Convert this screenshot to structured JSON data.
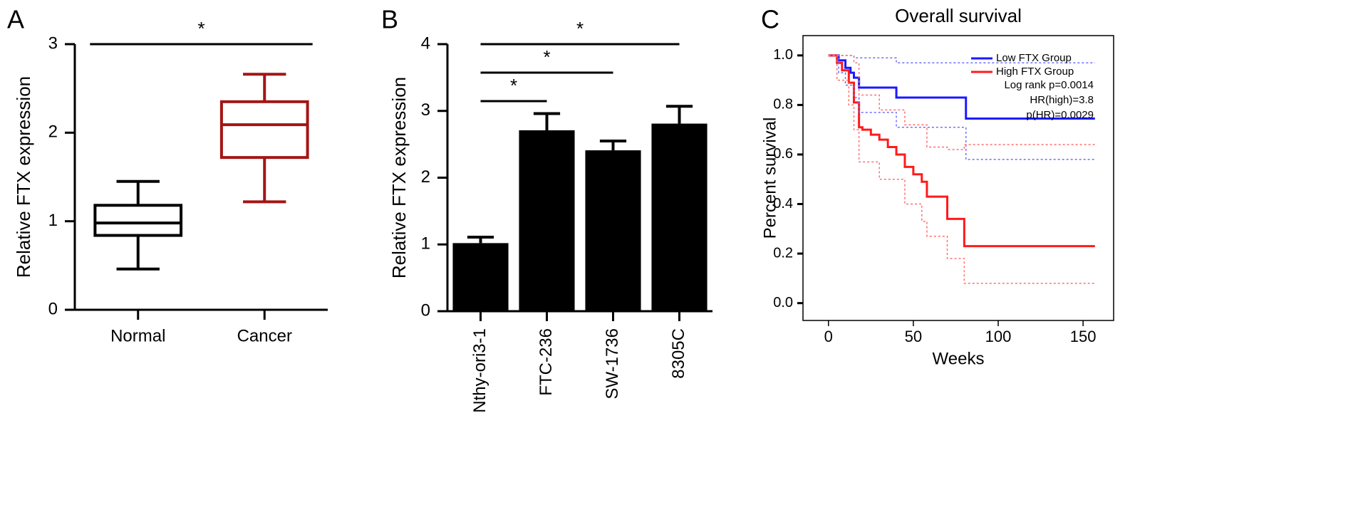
{
  "chart_data": [
    {
      "type": "box",
      "panel": "A",
      "ylabel": "Relative FTX expression",
      "categories": [
        "Normal",
        "Cancer"
      ],
      "colors": [
        "#000000",
        "#a31515"
      ],
      "boxes": [
        {
          "min": 0.46,
          "q1": 0.84,
          "median": 0.98,
          "q3": 1.18,
          "max": 1.45
        },
        {
          "min": 1.22,
          "q1": 1.72,
          "median": 2.09,
          "q3": 2.35,
          "max": 2.66
        }
      ],
      "ylim": [
        0,
        3
      ],
      "yticks": [
        0,
        1,
        2,
        3
      ],
      "comparisons": [
        {
          "label": "*",
          "between": [
            "Normal",
            "Cancer"
          ]
        }
      ]
    },
    {
      "type": "bar",
      "panel": "B",
      "ylabel": "Relative FTX expression",
      "categories": [
        "Nthy-ori3-1",
        "FTC-236",
        "SW-1736",
        "8305C"
      ],
      "color": "#000000",
      "values": [
        1.02,
        2.71,
        2.41,
        2.81
      ],
      "errors": [
        0.09,
        0.25,
        0.14,
        0.26
      ],
      "ylim": [
        0,
        4
      ],
      "yticks": [
        0,
        1,
        2,
        3,
        4
      ],
      "comparisons": [
        {
          "label": "*",
          "between": [
            "Nthy-ori3-1",
            "8305C"
          ]
        },
        {
          "label": "*",
          "between": [
            "Nthy-ori3-1",
            "SW-1736"
          ]
        },
        {
          "label": "*",
          "between": [
            "Nthy-ori3-1",
            "FTC-236"
          ]
        }
      ]
    },
    {
      "type": "step",
      "panel": "C",
      "title": "Overall survival",
      "xlabel": "Weeks",
      "ylabel": "Percent survival",
      "xlim": [
        -15,
        168
      ],
      "xticks": [
        0,
        50,
        100,
        150
      ],
      "ylim": [
        -0.07,
        1.08
      ],
      "yticks": [
        {
          "value": 0,
          "label": "0.0"
        },
        {
          "value": 0.2,
          "label": "0.2"
        },
        {
          "value": 0.4,
          "label": "0.4"
        },
        {
          "value": 0.6,
          "label": "0.6"
        },
        {
          "value": 0.8,
          "label": "0.8"
        },
        {
          "value": 1,
          "label": "1.0"
        }
      ],
      "series": [
        {
          "name": "Low FTX Group",
          "color": "#1a1aff",
          "style": "solid",
          "x": [
            0,
            6,
            10,
            13,
            15,
            18,
            40,
            81,
            157
          ],
          "values": [
            1,
            0.98,
            0.95,
            0.93,
            0.91,
            0.87,
            0.83,
            0.745,
            0.745
          ]
        },
        {
          "name": "High FTX Group",
          "color": "#ff1a1a",
          "style": "solid",
          "x": [
            0,
            5,
            8,
            12,
            15,
            18,
            20,
            25,
            30,
            35,
            40,
            45,
            50,
            55,
            58,
            70,
            80,
            157
          ],
          "values": [
            1,
            0.97,
            0.94,
            0.89,
            0.81,
            0.71,
            0.7,
            0.68,
            0.66,
            0.63,
            0.6,
            0.55,
            0.52,
            0.49,
            0.43,
            0.34,
            0.23,
            0.23
          ]
        },
        {
          "color": "#6f6fff",
          "style": "dotted",
          "x": [
            0,
            15,
            40,
            157
          ],
          "values": [
            1,
            0.99,
            0.97,
            0.97
          ]
        },
        {
          "color": "#6f6fff",
          "style": "dotted",
          "x": [
            0,
            6,
            10,
            15,
            18,
            40,
            81,
            157
          ],
          "values": [
            1,
            0.93,
            0.88,
            0.83,
            0.77,
            0.71,
            0.58,
            0.58
          ]
        },
        {
          "color": "#ff7070",
          "style": "dotted",
          "x": [
            0,
            8,
            15,
            18,
            30,
            45,
            58,
            70,
            80,
            157
          ],
          "values": [
            1,
            1,
            0.97,
            0.84,
            0.78,
            0.72,
            0.63,
            0.62,
            0.64,
            0.64
          ]
        },
        {
          "color": "#ff7070",
          "style": "dotted",
          "x": [
            0,
            5,
            12,
            15,
            18,
            30,
            45,
            55,
            58,
            70,
            80,
            157
          ],
          "values": [
            1,
            0.9,
            0.8,
            0.7,
            0.57,
            0.5,
            0.4,
            0.33,
            0.27,
            0.18,
            0.08,
            0.08
          ]
        }
      ],
      "annotations": [
        "Log rank p=0.0014",
        "HR(high)=3.8",
        "p(HR)=0.0029"
      ]
    }
  ]
}
